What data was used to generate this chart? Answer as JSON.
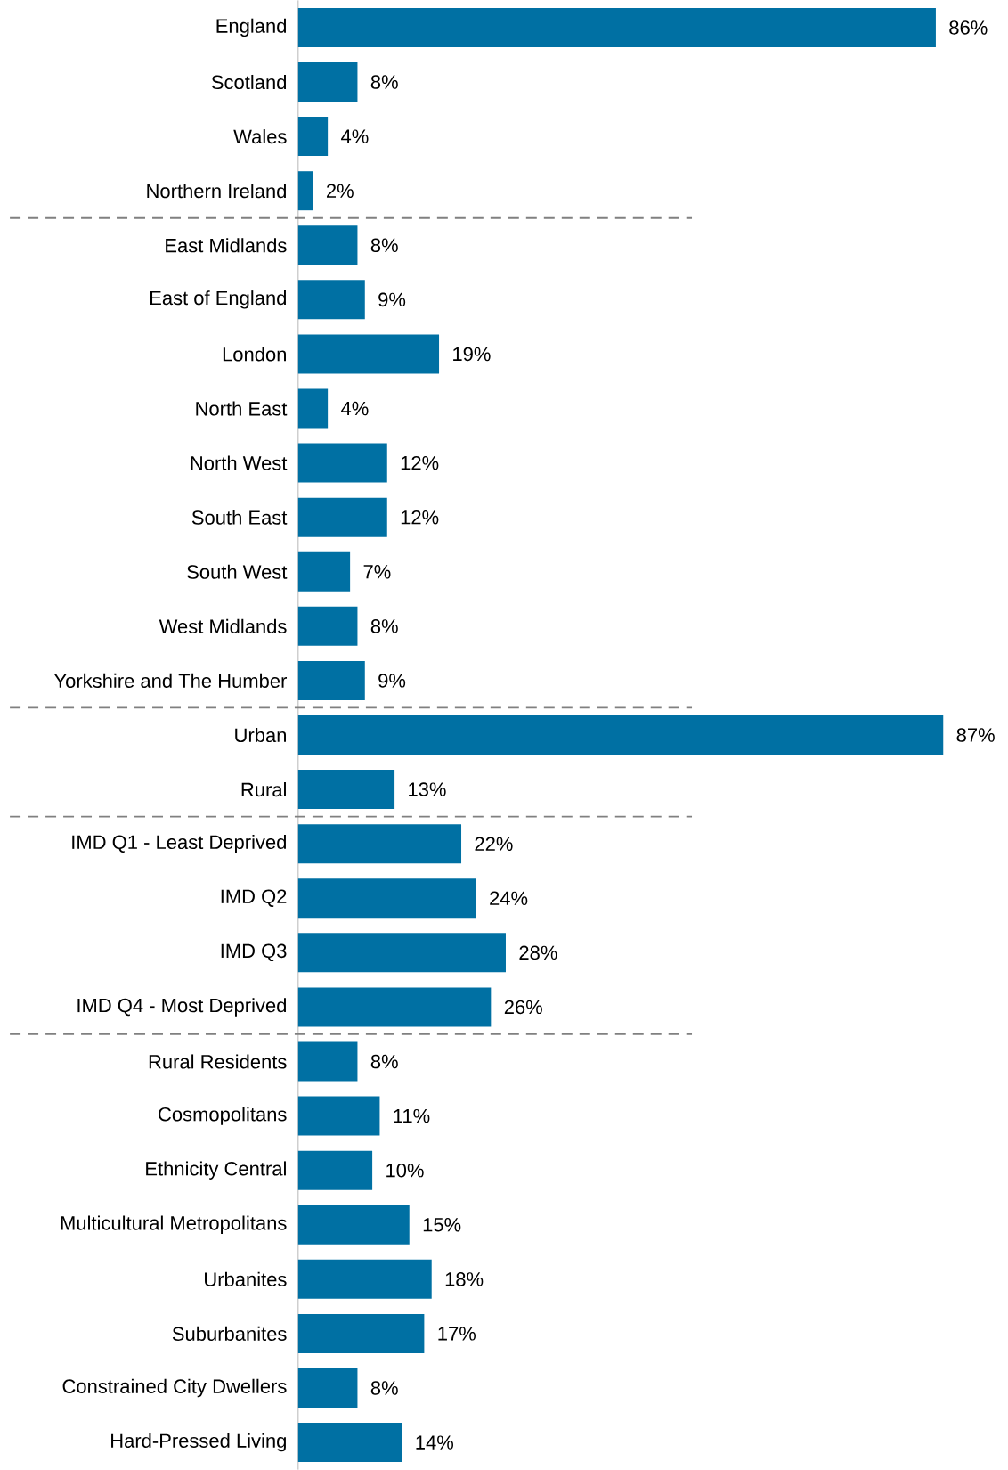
{
  "chart_data": {
    "type": "bar",
    "orientation": "horizontal",
    "color": "#0070a3",
    "categories": [
      "England",
      "Scotland",
      "Wales",
      "Northern Ireland",
      "East Midlands",
      "East of England",
      "London",
      "North East",
      "North West",
      "South East",
      "South West",
      "West Midlands",
      "Yorkshire and The Humber",
      "Urban",
      "Rural",
      "IMD Q1 - Least Deprived",
      "IMD Q2",
      "IMD Q3",
      "IMD Q4 - Most Deprived",
      "Rural Residents",
      "Cosmopolitans",
      "Ethnicity Central",
      "Multicultural Metropolitans",
      "Urbanites",
      "Suburbanites",
      "Constrained City Dwellers",
      "Hard-Pressed Living"
    ],
    "values": [
      86,
      8,
      4,
      2,
      8,
      9,
      19,
      4,
      12,
      12,
      7,
      8,
      9,
      87,
      13,
      22,
      24,
      28,
      26,
      8,
      11,
      10,
      15,
      18,
      17,
      8,
      14
    ],
    "value_labels": [
      "86%",
      "8%",
      "4%",
      "2%",
      "8%",
      "9%",
      "19%",
      "4%",
      "12%",
      "12%",
      "7%",
      "8%",
      "9%",
      "87%",
      "13%",
      "22%",
      "24%",
      "28%",
      "26%",
      "8%",
      "11%",
      "10%",
      "15%",
      "18%",
      "17%",
      "8%",
      "14%"
    ]
  }
}
